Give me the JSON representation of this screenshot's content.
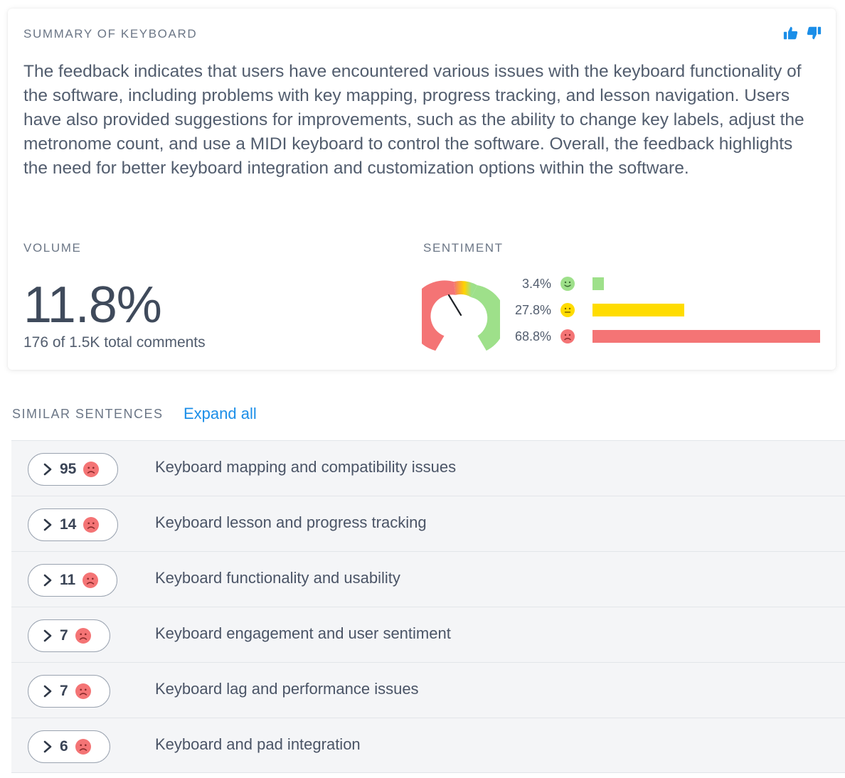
{
  "card": {
    "title": "SUMMARY OF KEYBOARD",
    "summary": "The feedback indicates that users have encountered various issues with the keyboard functionality of the software, including problems with key mapping, progress tracking, and lesson navigation. Users have also provided suggestions for improvements, such as the ability to change key labels, adjust the metronome count, and use a MIDI keyboard to control the software. Overall, the feedback highlights the need for better keyboard integration and customization options within the software.",
    "icons": [
      "thumbs-up-icon",
      "thumbs-down-icon"
    ],
    "accent_color": "#1b8ee8"
  },
  "volume": {
    "label": "VOLUME",
    "percent": "11.8%",
    "total": "176 of 1.5K total comments"
  },
  "sentiment": {
    "label": "SENTIMENT",
    "gauge_negative_share": 0.688,
    "rows": [
      {
        "value": "3.4%",
        "fraction": 0.034,
        "face": "happy-face-icon",
        "color": "#9ee08a"
      },
      {
        "value": "27.8%",
        "fraction": 0.278,
        "face": "neutral-face-icon",
        "color": "#ffdc00"
      },
      {
        "value": "68.8%",
        "fraction": 0.688,
        "face": "sad-face-icon",
        "color": "#f47475"
      }
    ]
  },
  "similar": {
    "label": "SIMILAR SENTENCES",
    "expand_all": "Expand all",
    "rows": [
      {
        "count": "95",
        "text": "Keyboard mapping and compatibility issues"
      },
      {
        "count": "14",
        "text": "Keyboard lesson and progress tracking"
      },
      {
        "count": "11",
        "text": "Keyboard functionality and usability"
      },
      {
        "count": "7",
        "text": "Keyboard engagement and user sentiment"
      },
      {
        "count": "7",
        "text": "Keyboard lag and performance issues"
      },
      {
        "count": "6",
        "text": "Keyboard and pad integration"
      }
    ]
  }
}
